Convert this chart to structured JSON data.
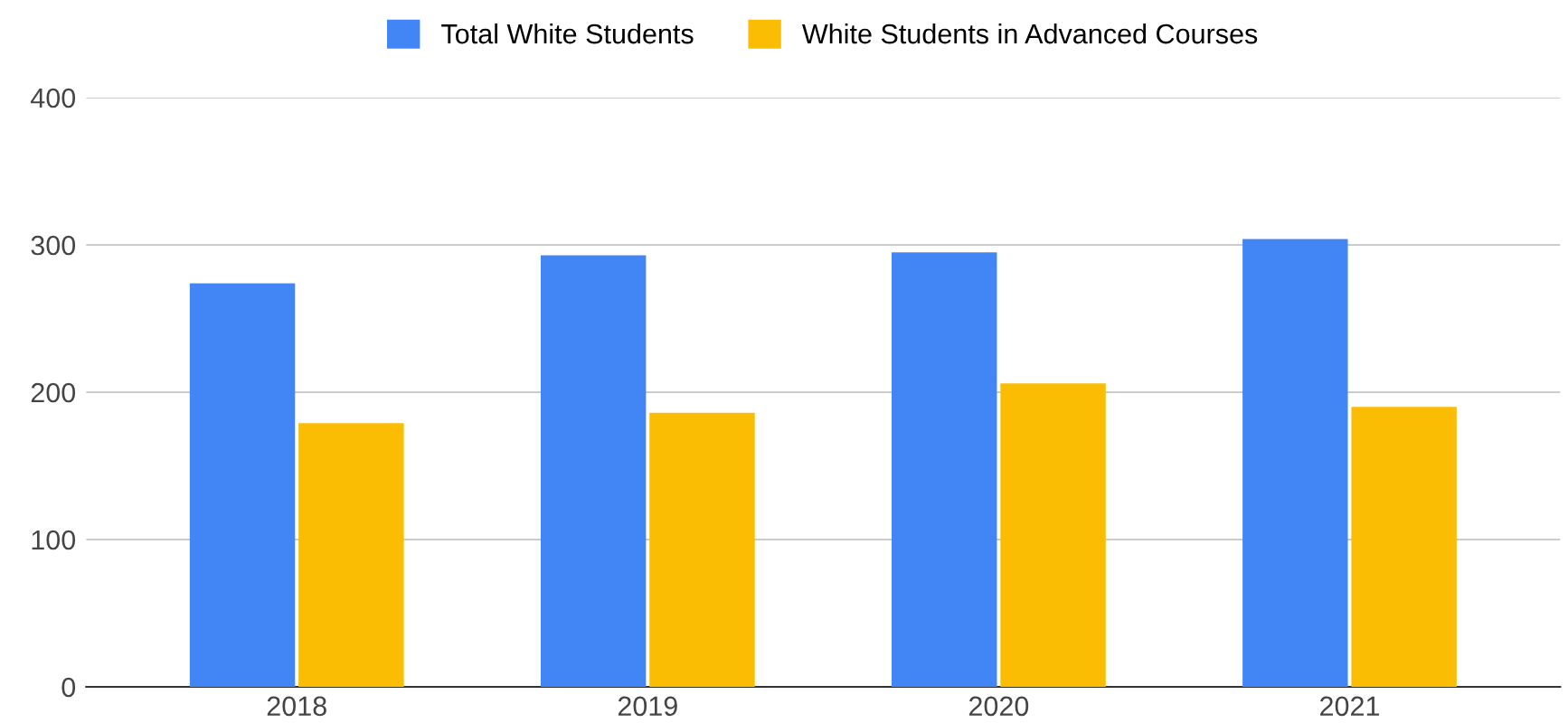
{
  "chart_data": {
    "type": "bar",
    "categories": [
      "2018",
      "2019",
      "2020",
      "2021"
    ],
    "series": [
      {
        "name": "Total White Students",
        "color": "#4285f4",
        "values": [
          274,
          293,
          295,
          304
        ]
      },
      {
        "name": "White Students in Advanced Courses",
        "color": "#fbbc04",
        "values": [
          179,
          186,
          206,
          190
        ]
      }
    ],
    "ylim": [
      0,
      400
    ],
    "yticks": [
      0,
      100,
      200,
      300,
      400
    ],
    "grid": "y",
    "legend": "top"
  }
}
